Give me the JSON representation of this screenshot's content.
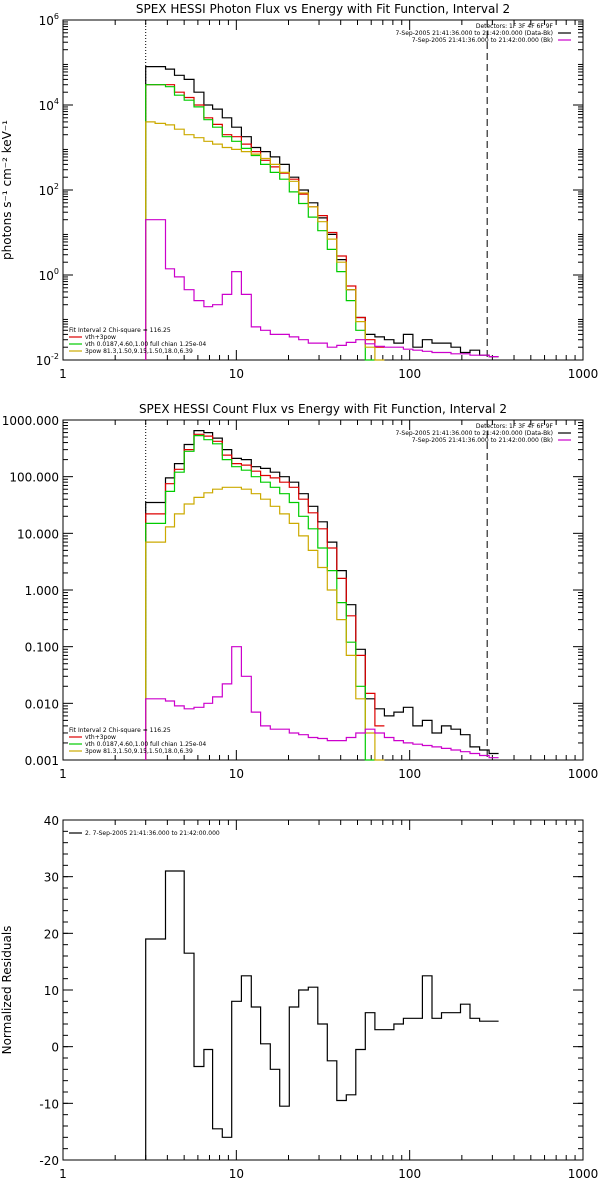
{
  "chart_data": [
    {
      "type": "line",
      "title": "SPEX HESSI Photon Flux vs Energy with Fit Function, Interval 2",
      "ylabel": "photons s⁻¹ cm⁻² keV⁻¹",
      "xscale": "log",
      "yscale": "log",
      "xlim": [
        1,
        1000
      ],
      "ylim": [
        0.01,
        1000000
      ],
      "xticks": [
        "1",
        "10",
        "100",
        "1000"
      ],
      "yticks": [
        {
          "v": 0.01,
          "base": "10",
          "exp": "-2"
        },
        {
          "v": 1,
          "base": "10",
          "exp": "0"
        },
        {
          "v": 100,
          "base": "10",
          "exp": "2"
        },
        {
          "v": 10000,
          "base": "10",
          "exp": "4"
        },
        {
          "v": 1000000,
          "base": "10",
          "exp": "6"
        }
      ],
      "vlines": [
        {
          "x": 3,
          "style": "dotted"
        },
        {
          "x": 280,
          "style": "dashed"
        }
      ],
      "legend_right": [
        {
          "text": "Detectors: 1F 3F 4F 6F 9F",
          "color": "#000000"
        },
        {
          "text": "7-Sep-2005 21:41:36.000 to 21:42:00.000 (Data-Bk)",
          "color": "#000000"
        },
        {
          "text": "7-Sep-2005 21:41:36.000 to 21:42:00.000 (Bk)",
          "color": "#cc00cc"
        }
      ],
      "legend_left": [
        {
          "text": "Fit Interval 2   Chi-square = 116.25",
          "color": "#000000"
        },
        {
          "text": "vth+3pow",
          "color": "#dd0000"
        },
        {
          "text": "vth 0.0187,4.60,1.00  full chian 1.25e-04",
          "color": "#00cc00"
        },
        {
          "text": "3pow 81.3,1.50,9.15,1.50,18.0,6.39",
          "color": "#ccaa00"
        }
      ],
      "series": [
        {
          "color": "#000000",
          "x": [
            3.0,
            3.4,
            3.9,
            4.4,
            5.0,
            5.7,
            6.5,
            7.3,
            8.3,
            9.4,
            10.7,
            12.2,
            13.8,
            15.7,
            17.8,
            20.2,
            22.9,
            26.0,
            29.5,
            33.5,
            38.0,
            43.1,
            48.9,
            55.5,
            63.0,
            71.5,
            81.1,
            92.0,
            104.4,
            118.5,
            134.5,
            152.6,
            173.2,
            196.5,
            223.0,
            253.1,
            287.2
          ],
          "y": [
            80000,
            80000,
            70000,
            50000,
            40000,
            20000,
            10000,
            8000,
            5000,
            3000,
            1800,
            1000,
            800,
            600,
            400,
            200,
            100,
            50,
            22,
            9,
            2.3,
            0.45,
            0.1,
            0.04,
            0.035,
            0.03,
            0.025,
            0.04,
            0.02,
            0.03,
            0.025,
            0.025,
            0.02,
            0.015,
            0.017,
            0.013,
            0.012
          ]
        },
        {
          "color": "#dd0000",
          "x": [
            3.0,
            3.4,
            3.9,
            4.4,
            5.0,
            5.7,
            6.5,
            7.3,
            8.3,
            9.4,
            10.7,
            12.2,
            13.8,
            15.7,
            17.8,
            20.2,
            22.9,
            26.0,
            29.5,
            33.5,
            38.0,
            43.1,
            48.9,
            55.5,
            63.0
          ],
          "y": [
            30000,
            30000,
            30000,
            20000,
            15000,
            10000,
            5000,
            3500,
            2000,
            1800,
            1200,
            800,
            500,
            350,
            250,
            180,
            80,
            40,
            25,
            10,
            2.8,
            0.55,
            0.1,
            0.03,
            0.02
          ]
        },
        {
          "color": "#00cc00",
          "x": [
            3.0,
            3.4,
            3.9,
            4.4,
            5.0,
            5.7,
            6.5,
            7.3,
            8.3,
            9.4,
            10.7,
            12.2,
            13.8,
            15.7,
            17.8,
            20.2,
            22.9,
            26.0,
            29.5,
            33.5,
            38.0,
            43.1,
            48.9,
            55.5
          ],
          "y": [
            30000,
            30000,
            27000,
            17000,
            13000,
            9000,
            4500,
            3000,
            1800,
            1400,
            950,
            650,
            400,
            260,
            180,
            90,
            48,
            23,
            11,
            4,
            1.2,
            0.25,
            0.05,
            0.01
          ]
        },
        {
          "color": "#ccaa00",
          "x": [
            3.0,
            3.4,
            3.9,
            4.4,
            5.0,
            5.7,
            6.5,
            7.3,
            8.3,
            9.4,
            10.7,
            12.2,
            13.8,
            15.7,
            17.8,
            20.2,
            22.9,
            26.0,
            29.5,
            33.5,
            38.0,
            43.1,
            48.9,
            55.5,
            63.0
          ],
          "y": [
            4000,
            3700,
            3400,
            2700,
            2000,
            1700,
            1400,
            1200,
            1000,
            900,
            800,
            700,
            550,
            400,
            260,
            160,
            85,
            40,
            18,
            7,
            2,
            0.45,
            0.08,
            0.02,
            0.01
          ]
        },
        {
          "color": "#cc00cc",
          "x": [
            3.0,
            3.4,
            3.9,
            4.4,
            5.0,
            5.7,
            6.5,
            7.3,
            8.3,
            9.4,
            10.7,
            12.2,
            13.8,
            15.7,
            17.8,
            20.2,
            22.9,
            26.0,
            29.5,
            33.5,
            38.0,
            43.1,
            48.9,
            55.5,
            63.0,
            71.5,
            81.1,
            92.0,
            104.4,
            118.5,
            134.5,
            152.6,
            173.2,
            196.5,
            223.0,
            253.1,
            287.2
          ],
          "y": [
            20,
            20,
            1.4,
            0.9,
            0.45,
            0.25,
            0.18,
            0.2,
            0.35,
            1.2,
            0.35,
            0.06,
            0.05,
            0.04,
            0.04,
            0.035,
            0.03,
            0.025,
            0.025,
            0.02,
            0.022,
            0.026,
            0.03,
            0.024,
            0.021,
            0.02,
            0.02,
            0.018,
            0.017,
            0.016,
            0.015,
            0.015,
            0.014,
            0.014,
            0.013,
            0.013,
            0.012
          ]
        }
      ]
    },
    {
      "type": "line",
      "title": "SPEX HESSI Count Flux vs Energy with Fit Function, Interval 2",
      "ylabel": "",
      "xscale": "log",
      "yscale": "log",
      "xlim": [
        1,
        1000
      ],
      "ylim": [
        0.001,
        1000
      ],
      "xticks": [
        "1",
        "10",
        "100",
        "1000"
      ],
      "yticks": [
        {
          "v": 0.001,
          "label": "0.001"
        },
        {
          "v": 0.01,
          "label": "0.010"
        },
        {
          "v": 0.1,
          "label": "0.100"
        },
        {
          "v": 1,
          "label": "1.000"
        },
        {
          "v": 10,
          "label": "10.000"
        },
        {
          "v": 100,
          "label": "100.000"
        },
        {
          "v": 1000,
          "label": "1000.000"
        }
      ],
      "vlines": [
        {
          "x": 3,
          "style": "dotted"
        },
        {
          "x": 280,
          "style": "dashed"
        }
      ],
      "legend_right": [
        {
          "text": "Detectors: 1F 3F 4F 6F 9F",
          "color": "#000000"
        },
        {
          "text": "7-Sep-2005 21:41:36.000 to 21:42:00.000 (Data-Bk)",
          "color": "#000000"
        },
        {
          "text": "7-Sep-2005 21:41:36.000 to 21:42:00.000 (Bk)",
          "color": "#cc00cc"
        }
      ],
      "legend_left": [
        {
          "text": "Fit Interval 2   Chi-square = 116.25",
          "color": "#000000"
        },
        {
          "text": "vth+3pow",
          "color": "#dd0000"
        },
        {
          "text": "vth 0.0187,4.60,1.00  full chian 1.25e-04",
          "color": "#00cc00"
        },
        {
          "text": "3pow 81.3,1.50,9.15,1.50,18.0,6.39",
          "color": "#ccaa00"
        }
      ],
      "series": [
        {
          "color": "#000000",
          "x": [
            3.0,
            3.4,
            3.9,
            4.4,
            5.0,
            5.7,
            6.5,
            7.3,
            8.3,
            9.4,
            10.7,
            12.2,
            13.8,
            15.7,
            17.8,
            20.2,
            22.9,
            26.0,
            29.5,
            33.5,
            38.0,
            43.1,
            48.9,
            55.5,
            63.0,
            71.5,
            81.1,
            92.0,
            104.4,
            118.5,
            134.5,
            152.6,
            173.2,
            196.5,
            223.0,
            253.1,
            287.2
          ],
          "y": [
            35,
            35,
            95,
            170,
            370,
            650,
            600,
            480,
            300,
            210,
            200,
            150,
            140,
            120,
            100,
            80,
            50,
            30,
            16,
            7,
            2.2,
            0.55,
            0.09,
            0.012,
            0.008,
            0.006,
            0.007,
            0.0085,
            0.004,
            0.005,
            0.003,
            0.004,
            0.0035,
            0.0028,
            0.0017,
            0.0015,
            0.0013
          ]
        },
        {
          "color": "#dd0000",
          "x": [
            3.0,
            3.4,
            3.9,
            4.4,
            5.0,
            5.7,
            6.5,
            7.3,
            8.3,
            9.4,
            10.7,
            12.2,
            13.8,
            15.7,
            17.8,
            20.2,
            22.9,
            26.0,
            29.5,
            33.5,
            38.0,
            43.1,
            48.9,
            55.5,
            63.0
          ],
          "y": [
            22,
            22,
            75,
            135,
            300,
            560,
            520,
            420,
            240,
            170,
            160,
            125,
            105,
            95,
            80,
            65,
            40,
            23,
            12,
            5.5,
            1.6,
            0.35,
            0.07,
            0.015,
            0.004
          ]
        },
        {
          "color": "#00cc00",
          "x": [
            3.0,
            3.4,
            3.9,
            4.4,
            5.0,
            5.7,
            6.5,
            7.3,
            8.3,
            9.4,
            10.7,
            12.2,
            13.8,
            15.7,
            17.8,
            20.2,
            22.9,
            26.0,
            29.5,
            33.5,
            38.0,
            43.1,
            48.9,
            55.5
          ],
          "y": [
            15,
            15,
            55,
            120,
            280,
            530,
            450,
            380,
            200,
            150,
            130,
            100,
            80,
            65,
            50,
            35,
            20,
            12,
            5.5,
            2.2,
            0.6,
            0.12,
            0.02,
            0.001
          ]
        },
        {
          "color": "#ccaa00",
          "x": [
            3.0,
            3.4,
            3.9,
            4.4,
            5.0,
            5.7,
            6.5,
            7.3,
            8.3,
            9.4,
            10.7,
            12.2,
            13.8,
            15.7,
            17.8,
            20.2,
            22.9,
            26.0,
            29.5,
            33.5,
            38.0,
            43.1,
            48.9,
            55.5,
            63.0
          ],
          "y": [
            7,
            7,
            13,
            22,
            33,
            43,
            52,
            60,
            65,
            65,
            60,
            50,
            40,
            30,
            22,
            15,
            9,
            5,
            2.5,
            1.0,
            0.3,
            0.07,
            0.012,
            0.003,
            0.001
          ]
        },
        {
          "color": "#cc00cc",
          "x": [
            3.0,
            3.4,
            3.9,
            4.4,
            5.0,
            5.7,
            6.5,
            7.3,
            8.3,
            9.4,
            10.7,
            12.2,
            13.8,
            15.7,
            17.8,
            20.2,
            22.9,
            26.0,
            29.5,
            33.5,
            38.0,
            43.1,
            48.9,
            55.5,
            63.0,
            71.5,
            81.1,
            92.0,
            104.4,
            118.5,
            134.5,
            152.6,
            173.2,
            196.5,
            223.0,
            253.1,
            287.2
          ],
          "y": [
            0.012,
            0.012,
            0.011,
            0.009,
            0.008,
            0.0085,
            0.01,
            0.013,
            0.022,
            0.1,
            0.03,
            0.007,
            0.004,
            0.0035,
            0.0035,
            0.003,
            0.0028,
            0.0025,
            0.0024,
            0.0022,
            0.0022,
            0.0025,
            0.003,
            0.0035,
            0.003,
            0.0025,
            0.0022,
            0.002,
            0.0019,
            0.0018,
            0.0017,
            0.0016,
            0.0015,
            0.0014,
            0.0013,
            0.0012,
            0.0011
          ]
        }
      ]
    },
    {
      "type": "line",
      "title": "",
      "ylabel": "Normalized Residuals",
      "xscale": "log",
      "yscale": "linear",
      "xlim": [
        1,
        1000
      ],
      "ylim": [
        -20,
        40
      ],
      "xticks": [
        "1",
        "10",
        "100",
        "1000"
      ],
      "yticks": [
        {
          "v": -20,
          "label": "-20"
        },
        {
          "v": -10,
          "label": "-10"
        },
        {
          "v": 0,
          "label": "0"
        },
        {
          "v": 10,
          "label": "10"
        },
        {
          "v": 20,
          "label": "20"
        },
        {
          "v": 30,
          "label": "30"
        },
        {
          "v": 40,
          "label": "40"
        }
      ],
      "legend_left": [
        {
          "text": "2.  7-Sep-2005 21:41:36.000 to 21:42:00.000",
          "color": "#000000"
        }
      ],
      "series": [
        {
          "color": "#000000",
          "x": [
            3.0,
            3.4,
            3.9,
            4.4,
            5.0,
            5.7,
            6.5,
            7.3,
            8.3,
            9.4,
            10.7,
            12.2,
            13.8,
            15.7,
            17.8,
            20.2,
            22.9,
            26.0,
            29.5,
            33.5,
            38.0,
            43.1,
            48.9,
            55.5,
            63.0,
            71.5,
            81.1,
            92.0,
            104.4,
            118.5,
            134.5,
            152.6,
            173.2,
            196.5,
            223.0,
            253.1,
            287.2
          ],
          "y": [
            19,
            19,
            31,
            31,
            16.5,
            -3.5,
            -0.5,
            -14.5,
            -16,
            8,
            12.5,
            7,
            0.5,
            -4,
            -10.5,
            7,
            10,
            10.5,
            4,
            -2.5,
            -9.5,
            -8.5,
            -0.5,
            6,
            3,
            3,
            4,
            5,
            5,
            12.5,
            5,
            6,
            6,
            7.5,
            5,
            4.5,
            4.5
          ]
        }
      ]
    }
  ]
}
